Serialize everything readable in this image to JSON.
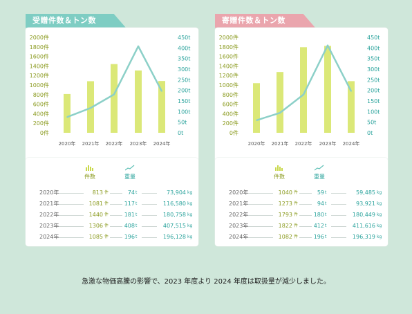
{
  "colors": {
    "bar": "#dbe878",
    "line": "#8cd0c8",
    "count_text": "#8a9a1e",
    "weight_text": "#2aa39c",
    "tab_left": "#7ecdc3",
    "tab_right": "#eaa5ad"
  },
  "legend": {
    "count_label": "件数",
    "weight_label": "重量",
    "count_icon": "bar-chart-icon",
    "weight_icon": "line-chart-icon"
  },
  "footnote": "急激な物価高騰の影響で、2023 年度より 2024 年度は取扱量が減少しました。",
  "chart_data": [
    {
      "type": "bar",
      "title": "受贈件数＆トン数",
      "categories": [
        "2020年",
        "2021年",
        "2022年",
        "2023年",
        "2024年"
      ],
      "series": [
        {
          "name": "件数",
          "type": "bar",
          "axis": "left",
          "values": [
            813,
            1081,
            1440,
            1306,
            1085
          ]
        },
        {
          "name": "重量",
          "type": "line",
          "axis": "right",
          "values": [
            74,
            117,
            181,
            408,
            196
          ]
        }
      ],
      "y_left_ticks": [
        "0件",
        "200件",
        "400件",
        "600件",
        "800件",
        "1000件",
        "1200件",
        "1400件",
        "1600件",
        "1800件",
        "2000件"
      ],
      "y_right_ticks": [
        "0t",
        "50t",
        "100t",
        "150t",
        "200t",
        "250t",
        "300t",
        "350t",
        "400t",
        "450t"
      ],
      "ylim_left": [
        0,
        2000
      ],
      "ylim_right": [
        0,
        450
      ],
      "grid": false,
      "table": [
        {
          "year": "2020年",
          "count": "813",
          "count_unit": "件",
          "tons": "74",
          "tons_unit": "t",
          "kg": "73,904",
          "kg_unit": "kg"
        },
        {
          "year": "2021年",
          "count": "1081",
          "count_unit": "件",
          "tons": "117",
          "tons_unit": "t",
          "kg": "116,580",
          "kg_unit": "kg"
        },
        {
          "year": "2022年",
          "count": "1440",
          "count_unit": "件",
          "tons": "181",
          "tons_unit": "t",
          "kg": "180,758",
          "kg_unit": "kg"
        },
        {
          "year": "2023年",
          "count": "1306",
          "count_unit": "件",
          "tons": "408",
          "tons_unit": "t",
          "kg": "407,515",
          "kg_unit": "kg"
        },
        {
          "year": "2024年",
          "count": "1085",
          "count_unit": "件",
          "tons": "196",
          "tons_unit": "t",
          "kg": "196,128",
          "kg_unit": "kg"
        }
      ]
    },
    {
      "type": "bar",
      "title": "寄贈件数＆トン数",
      "categories": [
        "2020年",
        "2021年",
        "2022年",
        "2023年",
        "2024年"
      ],
      "series": [
        {
          "name": "件数",
          "type": "bar",
          "axis": "left",
          "values": [
            1040,
            1273,
            1793,
            1822,
            1082
          ]
        },
        {
          "name": "重量",
          "type": "line",
          "axis": "right",
          "values": [
            59,
            94,
            180,
            412,
            196
          ]
        }
      ],
      "y_left_ticks": [
        "0件",
        "200件",
        "400件",
        "600件",
        "800件",
        "1000件",
        "1200件",
        "1400件",
        "1600件",
        "1800件",
        "2000件"
      ],
      "y_right_ticks": [
        "0t",
        "50t",
        "100t",
        "150t",
        "200t",
        "250t",
        "300t",
        "350t",
        "400t",
        "450t"
      ],
      "ylim_left": [
        0,
        2000
      ],
      "ylim_right": [
        0,
        450
      ],
      "grid": false,
      "table": [
        {
          "year": "2020年",
          "count": "1040",
          "count_unit": "件",
          "tons": "59",
          "tons_unit": "t",
          "kg": "59,485",
          "kg_unit": "kg"
        },
        {
          "year": "2021年",
          "count": "1273",
          "count_unit": "件",
          "tons": "94",
          "tons_unit": "t",
          "kg": "93,921",
          "kg_unit": "kg"
        },
        {
          "year": "2022年",
          "count": "1793",
          "count_unit": "件",
          "tons": "180",
          "tons_unit": "t",
          "kg": "180,449",
          "kg_unit": "kg"
        },
        {
          "year": "2023年",
          "count": "1822",
          "count_unit": "件",
          "tons": "412",
          "tons_unit": "t",
          "kg": "411,616",
          "kg_unit": "kg"
        },
        {
          "year": "2024年",
          "count": "1082",
          "count_unit": "件",
          "tons": "196",
          "tons_unit": "t",
          "kg": "196,319",
          "kg_unit": "kg"
        }
      ]
    }
  ]
}
